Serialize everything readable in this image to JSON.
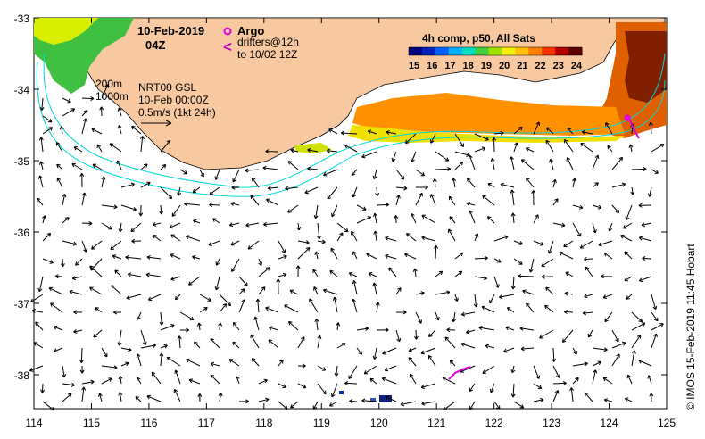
{
  "title": {
    "date": "10-Feb-2019",
    "time": "04Z"
  },
  "legend": {
    "argo_label": "Argo",
    "drifters_line1": "drifters@12h",
    "drifters_line2": "to 10/02 12Z",
    "drifter_symbol": "<"
  },
  "colorbar": {
    "title": "4h comp, p50, All Sats",
    "ticks": [
      "15",
      "16",
      "17",
      "18",
      "19",
      "20",
      "21",
      "22",
      "23",
      "24"
    ],
    "colors": [
      "#000080",
      "#0020c0",
      "#0060ff",
      "#00b0ff",
      "#00e0c0",
      "#40d040",
      "#a0e000",
      "#f0f000",
      "#ffc000",
      "#ff8000",
      "#ff3000",
      "#b00000",
      "#600000"
    ]
  },
  "annotations": {
    "contour_200": "200m",
    "contour_1000": "1000m",
    "product": "NRT00 GSL",
    "product_time": "10-Feb 00:00Z",
    "scale": "0.5m/s (1kt 24h)"
  },
  "axes": {
    "lon_ticks": [
      "114",
      "115",
      "116",
      "117",
      "118",
      "119",
      "120",
      "121",
      "122",
      "123",
      "124",
      "125"
    ],
    "lat_ticks": [
      "-33",
      "-34",
      "-35",
      "-36",
      "-37",
      "-38"
    ]
  },
  "credit": "© IMOS 15-Feb-2019 11:45 Hobart",
  "colors": {
    "land": "#f8c8a0",
    "contour": "#00d8d8",
    "argo": "#e000e0"
  }
}
